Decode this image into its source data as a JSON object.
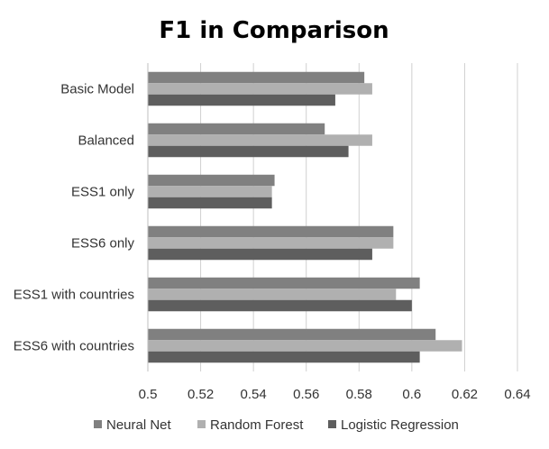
{
  "chart_data": {
    "type": "bar",
    "orientation": "horizontal",
    "title": "F1 in Comparison",
    "xlabel": "",
    "ylabel": "",
    "xlim": [
      0.5,
      0.64
    ],
    "x_ticks": [
      "0.5",
      "0.52",
      "0.54",
      "0.56",
      "0.58",
      "0.6",
      "0.62",
      "0.64"
    ],
    "x_tick_values": [
      0.5,
      0.52,
      0.54,
      0.56,
      0.58,
      0.6,
      0.62,
      0.64
    ],
    "grid": "vertical",
    "legend_position": "bottom",
    "categories": [
      "Basic Model",
      "Balanced",
      "ESS1 only",
      "ESS6 only",
      "ESS1 with countries",
      "ESS6 with countries"
    ],
    "series": [
      {
        "name": "Neural Net",
        "color": "#808080",
        "values": [
          0.582,
          0.567,
          0.548,
          0.593,
          0.603,
          0.609
        ]
      },
      {
        "name": "Random Forest",
        "color": "#b0b0b0",
        "values": [
          0.585,
          0.585,
          0.547,
          0.593,
          0.594,
          0.619
        ]
      },
      {
        "name": "Logistic Regression",
        "color": "#5e5e5e",
        "values": [
          0.571,
          0.576,
          0.547,
          0.585,
          0.6,
          0.603
        ]
      }
    ]
  }
}
